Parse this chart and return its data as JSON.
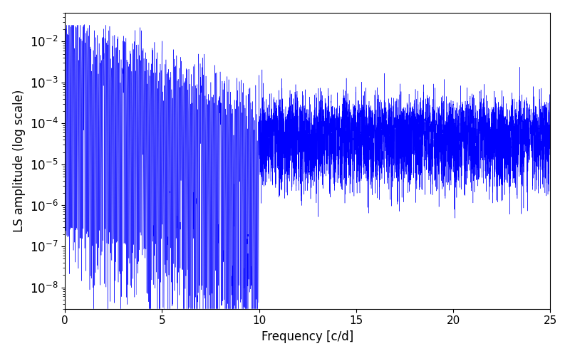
{
  "title": "",
  "xlabel": "Frequency [c/d]",
  "ylabel": "LS amplitude (log scale)",
  "xlim": [
    0,
    25
  ],
  "ylim": [
    3e-09,
    0.05
  ],
  "xticks": [
    0,
    5,
    10,
    15,
    20,
    25
  ],
  "line_color": "#0000ff",
  "background_color": "#ffffff",
  "figsize": [
    8.0,
    5.0
  ],
  "dpi": 100,
  "seed": 12345,
  "num_points": 15000,
  "freq_max": 25.0
}
